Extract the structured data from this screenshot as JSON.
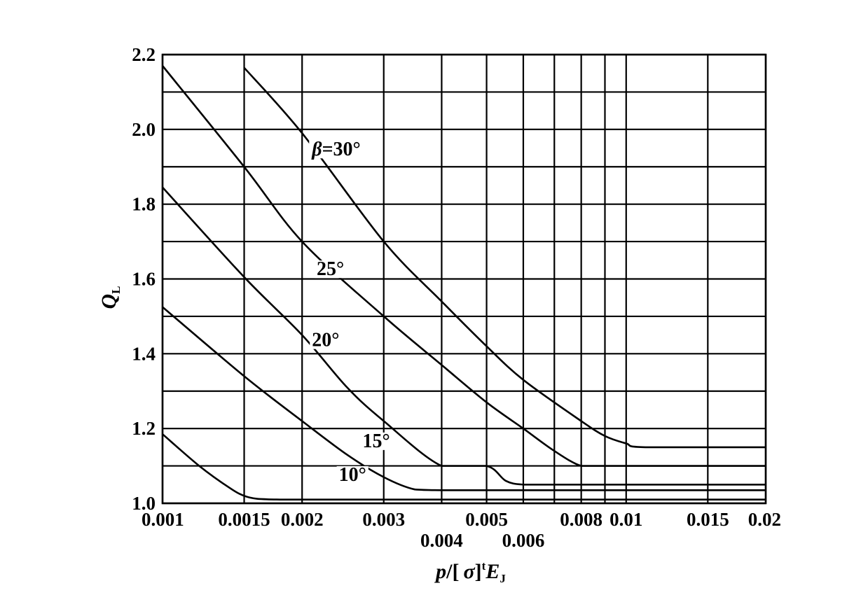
{
  "chart_data": {
    "type": "line",
    "x_scale": "log",
    "grid": true,
    "xlim": [
      0.001,
      0.02
    ],
    "ylim": [
      1.0,
      2.2
    ],
    "ylabel": "Q",
    "ylabel_subscript": "L",
    "xlabel": {
      "p": "p",
      "slash_open": "/[",
      "sigma": "σ",
      "close": "]",
      "sup": "t",
      "E": "E",
      "sub": "J"
    },
    "x_tick_labels": [
      {
        "value": 0.001,
        "label": "0.001",
        "row": 1
      },
      {
        "value": 0.0015,
        "label": "0.0015",
        "row": 1
      },
      {
        "value": 0.002,
        "label": "0.002",
        "row": 1
      },
      {
        "value": 0.003,
        "label": "0.003",
        "row": 1
      },
      {
        "value": 0.004,
        "label": "0.004",
        "row": 2
      },
      {
        "value": 0.005,
        "label": "0.005",
        "row": 1
      },
      {
        "value": 0.006,
        "label": "0.006",
        "row": 2
      },
      {
        "value": 0.008,
        "label": "0.008",
        "row": 1
      },
      {
        "value": 0.01,
        "label": "0.01",
        "row": 1
      },
      {
        "value": 0.015,
        "label": "0.015",
        "row": 1
      },
      {
        "value": 0.02,
        "label": "0.02",
        "row": 1
      }
    ],
    "x_gridlines": [
      0.001,
      0.0015,
      0.002,
      0.003,
      0.004,
      0.005,
      0.006,
      0.007,
      0.008,
      0.009,
      0.01,
      0.015,
      0.02
    ],
    "y_ticks": [
      {
        "value": 1.0,
        "label": "1.0"
      },
      {
        "value": 1.2,
        "label": "1.2"
      },
      {
        "value": 1.4,
        "label": "1.4"
      },
      {
        "value": 1.6,
        "label": "1.6"
      },
      {
        "value": 1.8,
        "label": "1.8"
      },
      {
        "value": 2.0,
        "label": "2.0"
      },
      {
        "value": 2.2,
        "label": "2.2"
      }
    ],
    "y_gridlines": [
      1.0,
      1.1,
      1.2,
      1.3,
      1.4,
      1.5,
      1.6,
      1.7,
      1.8,
      1.9,
      2.0,
      2.1,
      2.2
    ],
    "series": [
      {
        "name": "10°",
        "label_text": "10°",
        "label_anchor": {
          "x": 0.0024,
          "y": 1.06
        },
        "x": [
          0.001,
          0.0012,
          0.0014,
          0.0015,
          0.0016,
          0.0018,
          0.002,
          0.003,
          0.005,
          0.01,
          0.02
        ],
        "y": [
          1.185,
          1.1,
          1.04,
          1.02,
          1.012,
          1.01,
          1.01,
          1.01,
          1.01,
          1.01,
          1.01
        ]
      },
      {
        "name": "15°",
        "label_text": "15°",
        "label_anchor": {
          "x": 0.0027,
          "y": 1.15
        },
        "x": [
          0.001,
          0.0015,
          0.002,
          0.0025,
          0.003,
          0.0035,
          0.004,
          0.005,
          0.01,
          0.02
        ],
        "y": [
          1.525,
          1.34,
          1.22,
          1.13,
          1.07,
          1.037,
          1.035,
          1.035,
          1.035,
          1.035
        ]
      },
      {
        "name": "20°",
        "label_text": "20°",
        "label_anchor": {
          "x": 0.0021,
          "y": 1.42
        },
        "x": [
          0.001,
          0.0015,
          0.002,
          0.0025,
          0.003,
          0.004,
          0.005,
          0.0055,
          0.006,
          0.007,
          0.01,
          0.02
        ],
        "y": [
          1.845,
          1.605,
          1.45,
          1.31,
          1.22,
          1.1,
          1.1,
          1.06,
          1.05,
          1.05,
          1.05,
          1.05
        ]
      },
      {
        "name": "25°",
        "label_text": "25°",
        "label_anchor": {
          "x": 0.00215,
          "y": 1.61
        },
        "x": [
          0.001,
          0.0015,
          0.002,
          0.003,
          0.004,
          0.005,
          0.006,
          0.007,
          0.008,
          0.009,
          0.01,
          0.02
        ],
        "y": [
          2.17,
          1.9,
          1.7,
          1.5,
          1.37,
          1.27,
          1.2,
          1.14,
          1.1,
          1.1,
          1.1,
          1.1
        ]
      },
      {
        "name": "β=30°",
        "label_text": "β=30°",
        "label_anchor": {
          "x": 0.0021,
          "y": 1.93
        },
        "x": [
          0.0015,
          0.002,
          0.003,
          0.004,
          0.005,
          0.006,
          0.008,
          0.009,
          0.01,
          0.011,
          0.02
        ],
        "y": [
          2.165,
          1.99,
          1.7,
          1.54,
          1.42,
          1.33,
          1.22,
          1.18,
          1.16,
          1.15,
          1.15
        ]
      }
    ]
  }
}
